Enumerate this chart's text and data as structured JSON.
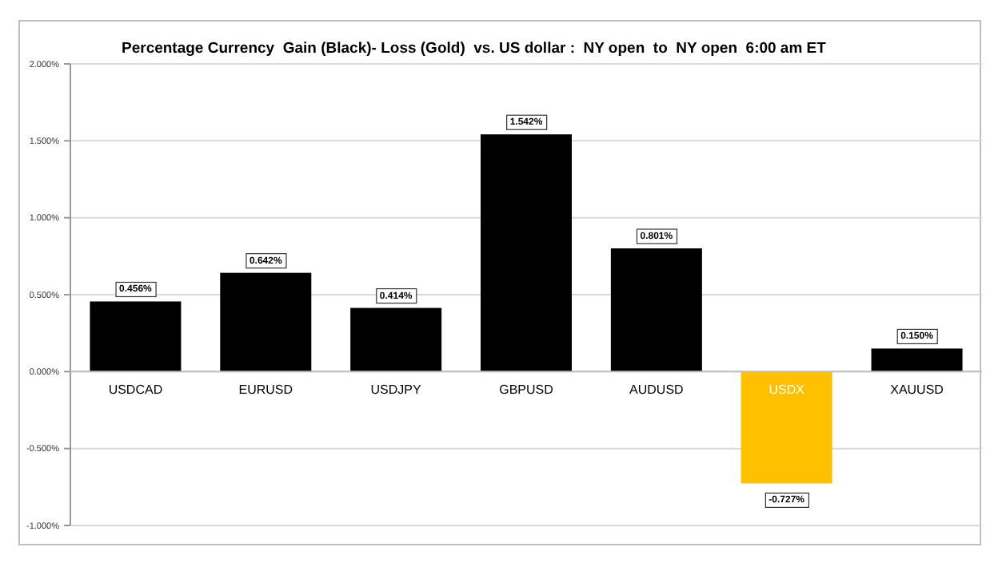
{
  "chart_data": {
    "type": "bar",
    "title": "Percentage Currency  Gain (Black)- Loss (Gold)  vs. US dollar :  NY open  to  NY open  6:00 am ET",
    "categories": [
      "USDCAD",
      "EURUSD",
      "USDJPY",
      "GBPUSD",
      "AUDUSD",
      "USDX",
      "XAUUSD"
    ],
    "values": [
      0.456,
      0.642,
      0.414,
      1.542,
      0.801,
      -0.727,
      0.15
    ],
    "colors": [
      "#000000",
      "#000000",
      "#000000",
      "#000000",
      "#000000",
      "#ffc000",
      "#000000"
    ],
    "value_labels": [
      "0.456%",
      "0.642%",
      "0.414%",
      "1.542%",
      "0.801%",
      "-0.727%",
      "0.150%"
    ],
    "ylim": [
      -1,
      2
    ],
    "yticks": [
      {
        "value": -1,
        "label": "-1.000%"
      },
      {
        "value": -0.5,
        "label": "-0.500%"
      },
      {
        "value": 0,
        "label": "0.000%"
      },
      {
        "value": 0.5,
        "label": "0.500%"
      },
      {
        "value": 1,
        "label": "1.000%"
      },
      {
        "value": 1.5,
        "label": "1.500%"
      },
      {
        "value": 2,
        "label": "2.000%"
      }
    ],
    "grid": "y"
  }
}
